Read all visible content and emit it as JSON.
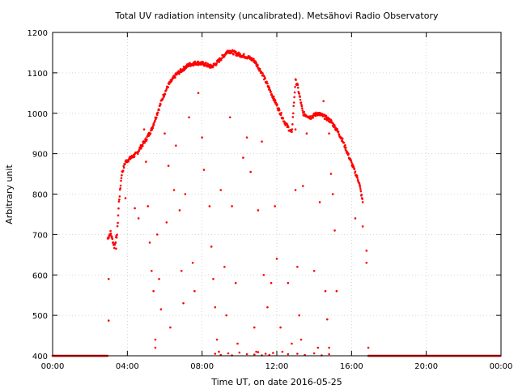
{
  "chart_data": {
    "type": "scatter",
    "title": "Total UV radiation intensity (uncalibrated). Metsähovi Radio Observatory",
    "xlabel": "Time UT, on date 2016-05-25",
    "ylabel": "Arbitrary unit",
    "xlim": [
      0,
      24
    ],
    "ylim": [
      400,
      1200
    ],
    "x_ticks": [
      {
        "value": 0,
        "label": "00:00"
      },
      {
        "value": 4,
        "label": "04:00"
      },
      {
        "value": 8,
        "label": "08:00"
      },
      {
        "value": 12,
        "label": "12:00"
      },
      {
        "value": 16,
        "label": "16:00"
      },
      {
        "value": 20,
        "label": "20:00"
      },
      {
        "value": 24,
        "label": "00:00"
      }
    ],
    "y_ticks": [
      {
        "value": 400,
        "label": "400"
      },
      {
        "value": 500,
        "label": "500"
      },
      {
        "value": 600,
        "label": "600"
      },
      {
        "value": 700,
        "label": "700"
      },
      {
        "value": 800,
        "label": "800"
      },
      {
        "value": 900,
        "label": "900"
      },
      {
        "value": 1000,
        "label": "1000"
      },
      {
        "value": 1100,
        "label": "1100"
      },
      {
        "value": 1200,
        "label": "1200"
      }
    ],
    "grid": true,
    "legend": "none",
    "series_color": "#ff0000",
    "envelope": [
      [
        2.95,
        690
      ],
      [
        3.1,
        705
      ],
      [
        3.3,
        670
      ],
      [
        3.45,
        700
      ],
      [
        3.55,
        780
      ],
      [
        3.7,
        850
      ],
      [
        3.9,
        880
      ],
      [
        4.2,
        890
      ],
      [
        4.5,
        900
      ],
      [
        4.7,
        915
      ],
      [
        5.0,
        935
      ],
      [
        5.3,
        960
      ],
      [
        5.6,
        1000
      ],
      [
        5.9,
        1040
      ],
      [
        6.2,
        1070
      ],
      [
        6.6,
        1095
      ],
      [
        7.0,
        1110
      ],
      [
        7.3,
        1120
      ],
      [
        7.7,
        1125
      ],
      [
        8.1,
        1122
      ],
      [
        8.5,
        1115
      ],
      [
        8.8,
        1125
      ],
      [
        9.1,
        1140
      ],
      [
        9.4,
        1155
      ],
      [
        9.7,
        1150
      ],
      [
        10.0,
        1145
      ],
      [
        10.4,
        1140
      ],
      [
        10.8,
        1130
      ],
      [
        11.2,
        1100
      ],
      [
        11.6,
        1060
      ],
      [
        12.0,
        1020
      ],
      [
        12.4,
        980
      ],
      [
        12.8,
        950
      ],
      [
        13.0,
        1080
      ],
      [
        13.1,
        1070
      ],
      [
        13.4,
        1000
      ],
      [
        13.8,
        990
      ],
      [
        14.2,
        1000
      ],
      [
        14.6,
        990
      ],
      [
        14.9,
        980
      ],
      [
        15.2,
        960
      ],
      [
        15.5,
        935
      ],
      [
        15.8,
        900
      ],
      [
        16.1,
        865
      ],
      [
        16.4,
        830
      ],
      [
        16.6,
        780
      ]
    ],
    "scatter_outliers": [
      [
        3.0,
        590
      ],
      [
        3.0,
        487
      ],
      [
        3.4,
        665
      ],
      [
        3.9,
        790
      ],
      [
        4.4,
        765
      ],
      [
        4.6,
        740
      ],
      [
        4.9,
        960
      ],
      [
        5.0,
        880
      ],
      [
        5.1,
        770
      ],
      [
        5.2,
        680
      ],
      [
        5.3,
        610
      ],
      [
        5.4,
        560
      ],
      [
        5.5,
        440
      ],
      [
        5.5,
        420
      ],
      [
        5.6,
        700
      ],
      [
        5.7,
        590
      ],
      [
        5.8,
        515
      ],
      [
        6.0,
        950
      ],
      [
        6.1,
        730
      ],
      [
        6.2,
        870
      ],
      [
        6.3,
        470
      ],
      [
        6.5,
        810
      ],
      [
        6.6,
        920
      ],
      [
        6.8,
        760
      ],
      [
        6.9,
        610
      ],
      [
        7.0,
        530
      ],
      [
        7.1,
        800
      ],
      [
        7.3,
        990
      ],
      [
        7.5,
        630
      ],
      [
        7.6,
        560
      ],
      [
        7.8,
        1050
      ],
      [
        8.0,
        940
      ],
      [
        8.1,
        860
      ],
      [
        8.4,
        770
      ],
      [
        8.5,
        670
      ],
      [
        8.6,
        590
      ],
      [
        8.7,
        520
      ],
      [
        8.8,
        440
      ],
      [
        8.9,
        410
      ],
      [
        9.0,
        810
      ],
      [
        9.2,
        620
      ],
      [
        9.3,
        500
      ],
      [
        9.5,
        990
      ],
      [
        9.6,
        770
      ],
      [
        9.8,
        580
      ],
      [
        9.9,
        430
      ],
      [
        10.2,
        890
      ],
      [
        10.4,
        940
      ],
      [
        10.6,
        855
      ],
      [
        10.8,
        470
      ],
      [
        10.9,
        410
      ],
      [
        11.0,
        760
      ],
      [
        11.2,
        930
      ],
      [
        11.3,
        600
      ],
      [
        11.5,
        520
      ],
      [
        11.7,
        580
      ],
      [
        11.9,
        770
      ],
      [
        12.0,
        640
      ],
      [
        12.2,
        470
      ],
      [
        12.3,
        410
      ],
      [
        12.6,
        580
      ],
      [
        12.8,
        430
      ],
      [
        13.0,
        960
      ],
      [
        13.0,
        810
      ],
      [
        13.1,
        620
      ],
      [
        13.2,
        500
      ],
      [
        13.3,
        440
      ],
      [
        13.4,
        820
      ],
      [
        13.6,
        950
      ],
      [
        14.0,
        610
      ],
      [
        14.2,
        420
      ],
      [
        14.3,
        780
      ],
      [
        14.5,
        1030
      ],
      [
        14.6,
        560
      ],
      [
        14.7,
        490
      ],
      [
        14.8,
        950
      ],
      [
        14.8,
        420
      ],
      [
        14.9,
        850
      ],
      [
        15.0,
        800
      ],
      [
        15.1,
        710
      ],
      [
        15.2,
        560
      ],
      [
        16.2,
        740
      ],
      [
        16.6,
        720
      ],
      [
        16.8,
        660
      ],
      [
        16.8,
        630
      ],
      [
        16.9,
        420
      ]
    ],
    "bottom_cluster": [
      [
        8.7,
        405
      ],
      [
        9.0,
        402
      ],
      [
        9.4,
        406
      ],
      [
        9.6,
        401
      ],
      [
        10.0,
        408
      ],
      [
        10.4,
        404
      ],
      [
        10.8,
        403
      ],
      [
        11.0,
        409
      ],
      [
        11.2,
        401
      ],
      [
        11.4,
        405
      ],
      [
        11.6,
        402
      ],
      [
        11.8,
        407
      ],
      [
        12.6,
        404
      ],
      [
        13.1,
        405
      ],
      [
        13.5,
        402
      ],
      [
        14.0,
        406
      ],
      [
        14.4,
        401
      ],
      [
        14.8,
        404
      ]
    ],
    "baseline_segments": [
      [
        0,
        2.95,
        400
      ],
      [
        16.9,
        24,
        400
      ]
    ]
  }
}
